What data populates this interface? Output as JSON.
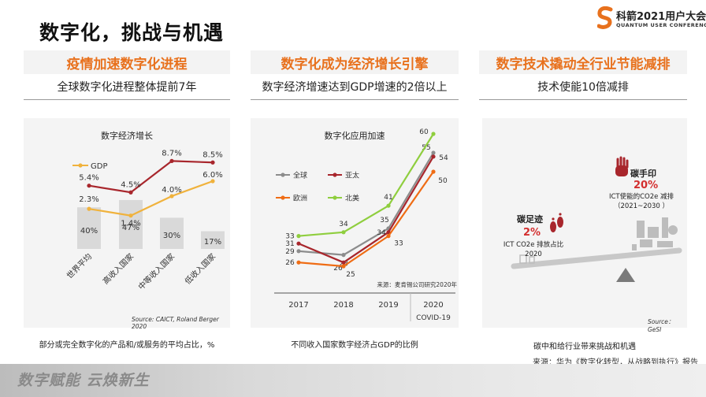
{
  "title": "数字化，挑战与机遇",
  "logo": {
    "cn": "科箭2021用户大会",
    "en": "QUANTUM USER CONFERENCE",
    "accent": "#e8711d"
  },
  "columns": [
    {
      "head": "疫情加速数字化进程",
      "sub": "全球数字化进程整体提前7年"
    },
    {
      "head": "数字化成为经济增长引擎",
      "sub": "数字经济增速达到GDP增速的2倍以上"
    },
    {
      "head": "数字技术撬动全行业节能减排",
      "sub": "技术使能10倍减排"
    }
  ],
  "chart1": {
    "title": "数字经济增长",
    "legend": "GDP",
    "source": "Source:  CAICT, Roland Berger 2020",
    "caption": "部分或完全数字化的产品和/或服务的平均占比，%",
    "bar_labels": [
      "40%",
      "47%",
      "30%",
      "17%"
    ],
    "red_labels": [
      "5.4%",
      "4.5%",
      "8.7%",
      "8.5%"
    ],
    "gdp_labels": [
      "2.3%",
      "1.4%",
      "4.0%",
      "6.0%"
    ]
  },
  "chart2": {
    "title": "数字化应用加速",
    "legend": [
      "全球",
      "亚太",
      "欧洲",
      "北美"
    ],
    "source": "来源：麦肯锡公司研究2020年",
    "x_labels": [
      "2017",
      "2018",
      "2019",
      "2020"
    ],
    "covid": "COVID-19",
    "caption": "不同收入国家数字经济占GDP的比例"
  },
  "panel3": {
    "footprint_title": "碳足迹",
    "footprint_value": "2%",
    "footprint_desc": [
      "ICT CO2e 排放占比",
      "2020"
    ],
    "handprint_title": "碳手印",
    "handprint_value": "20%",
    "handprint_desc": [
      "ICT使能的CO2e 减排",
      "（2021~2030 ）"
    ],
    "source": "Source：GeSI",
    "caption": "碳中和给行业带来挑战和机遇"
  },
  "footer_source": "来源：华为《数字化转型，从战略到执行》报告",
  "bottom_band": "数字赋能 云焕新生",
  "chart_data": [
    {
      "type": "bar",
      "title": "数字经济增长",
      "categories": [
        "世界平均",
        "高收入国家",
        "中等收入国家",
        "低收入国家"
      ],
      "values": [
        40,
        47,
        30,
        17
      ],
      "series": [
        {
          "values": [
            5.4,
            4.5,
            8.7,
            8.5
          ],
          "color": "#a8262c"
        },
        {
          "name": "GDP",
          "values": [
            2.3,
            1.4,
            4.0,
            6.0
          ],
          "color": "#f0b23c"
        }
      ]
    },
    {
      "type": "line",
      "title": "数字化应用加速",
      "categories": [
        "2017",
        "2018",
        "2019",
        "2020"
      ],
      "series": [
        {
          "name": "全球",
          "values": [
            29,
            28,
            35,
            55
          ],
          "color": "#8c8c8c"
        },
        {
          "name": "亚太",
          "values": [
            31,
            26,
            34,
            54
          ],
          "color": "#a8262c"
        },
        {
          "name": "欧洲",
          "values": [
            26,
            25,
            33,
            50
          ],
          "color": "#ef6c14"
        },
        {
          "name": "北美",
          "values": [
            33,
            34,
            41,
            60
          ],
          "color": "#8fce3e"
        }
      ]
    }
  ]
}
